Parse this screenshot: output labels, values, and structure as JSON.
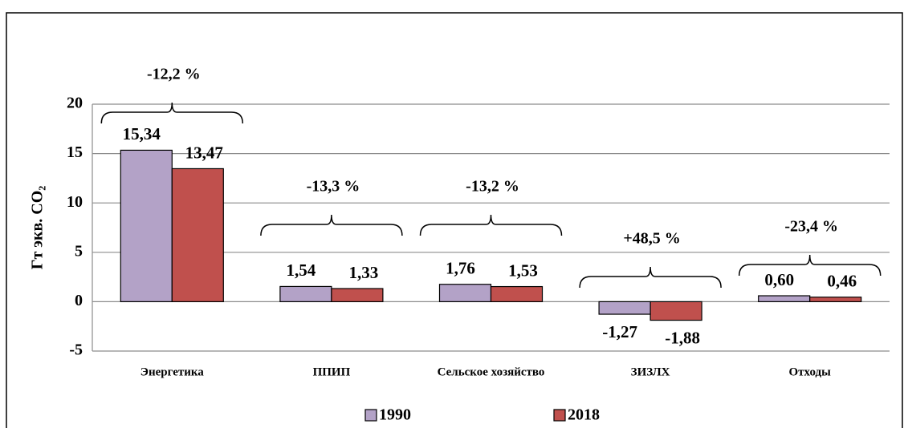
{
  "chart_data": {
    "type": "bar",
    "y_label": "Гт экв. CO₂",
    "categories": [
      "Энергетика",
      "ППИП",
      "Сельское хозяйство",
      "ЗИЗЛХ",
      "Отходы"
    ],
    "series": [
      {
        "name": "1990",
        "color": "#b3a2c7",
        "values": [
          15.34,
          1.54,
          1.76,
          -1.27,
          0.6
        ],
        "value_labels": [
          "15,34",
          "1,54",
          "1,76",
          "-1,27",
          "0,60"
        ]
      },
      {
        "name": "2018",
        "color": "#c0504d",
        "values": [
          13.47,
          1.33,
          1.53,
          -1.88,
          0.46
        ],
        "value_labels": [
          "13,47",
          "1,33",
          "1,53",
          "-1,88",
          "0,46"
        ]
      }
    ],
    "annotations": [
      "-12,2 %",
      "-13,3 %",
      "-13,2 %",
      "+48,5 %",
      "-23,4 %"
    ],
    "ylim": [
      -5,
      20
    ],
    "yticks": [
      -5,
      0,
      5,
      10,
      15,
      20
    ],
    "grid": true,
    "legend": "bottom"
  }
}
